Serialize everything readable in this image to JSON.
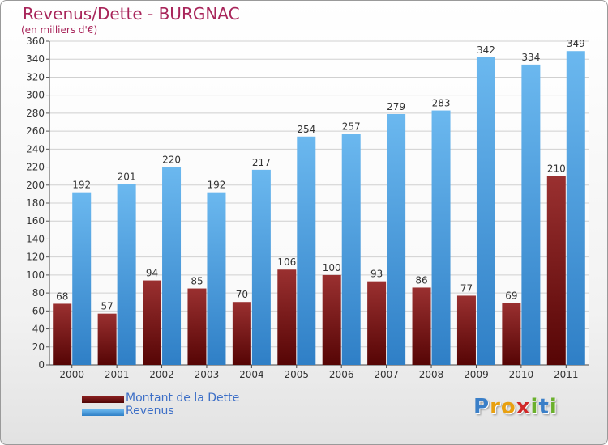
{
  "chart_data": {
    "type": "bar",
    "title": "Revenus/Dette - BURGNAC",
    "subtitle": "(en milliers d'€)",
    "xlabel": "",
    "ylabel": "",
    "ylim": [
      0,
      360
    ],
    "ytick_step": 20,
    "grid": true,
    "legend_position": "bottom-left",
    "categories": [
      "2000",
      "2001",
      "2002",
      "2003",
      "2004",
      "2005",
      "2006",
      "2007",
      "2008",
      "2009",
      "2010",
      "2011"
    ],
    "series": [
      {
        "name": "Montant de la Dette",
        "color": "#7a1414",
        "values": [
          68,
          57,
          94,
          85,
          70,
          106,
          100,
          93,
          86,
          77,
          69,
          210
        ]
      },
      {
        "name": "Revenus",
        "color": "#4b9fe0",
        "values": [
          192,
          201,
          220,
          192,
          217,
          254,
          257,
          279,
          283,
          342,
          334,
          349
        ]
      }
    ]
  },
  "brand": {
    "letters": [
      "P",
      "r",
      "o",
      "x",
      "i",
      "t",
      "i"
    ],
    "colors": [
      "#3a7fc8",
      "#e8a010",
      "#e8a010",
      "#d02828",
      "#6ab02c",
      "#3a7fc8",
      "#6ab02c"
    ]
  }
}
